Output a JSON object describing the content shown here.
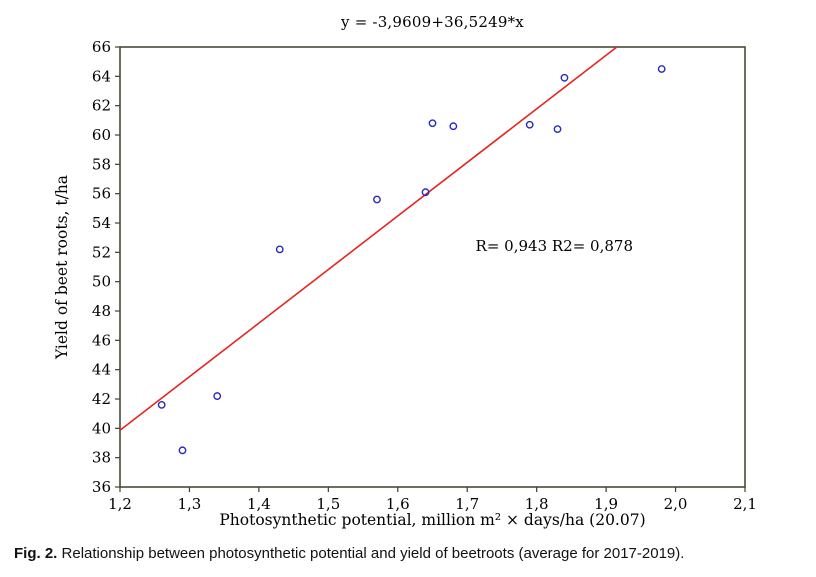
{
  "chart_data": {
    "type": "scatter",
    "title": "y = -3,9609+36,5249*x",
    "xlabel": "Photosynthetic potential, million m² × days/ha (20.07)",
    "ylabel": "Yield of beet roots, t/ha",
    "xlim": [
      1.2,
      2.1
    ],
    "ylim": [
      36,
      66
    ],
    "grid": false,
    "legend": null,
    "x_ticks": [
      {
        "value": 1.2,
        "label": "1,2"
      },
      {
        "value": 1.3,
        "label": "1,3"
      },
      {
        "value": 1.4,
        "label": "1,4"
      },
      {
        "value": 1.5,
        "label": "1,5"
      },
      {
        "value": 1.6,
        "label": "1,6"
      },
      {
        "value": 1.7,
        "label": "1,7"
      },
      {
        "value": 1.8,
        "label": "1,8"
      },
      {
        "value": 1.9,
        "label": "1,9"
      },
      {
        "value": 2.0,
        "label": "2,0"
      },
      {
        "value": 2.1,
        "label": "2,1"
      }
    ],
    "y_ticks": [
      {
        "value": 36,
        "label": "36"
      },
      {
        "value": 38,
        "label": "38"
      },
      {
        "value": 40,
        "label": "40"
      },
      {
        "value": 42,
        "label": "42"
      },
      {
        "value": 44,
        "label": "44"
      },
      {
        "value": 46,
        "label": "46"
      },
      {
        "value": 48,
        "label": "48"
      },
      {
        "value": 50,
        "label": "50"
      },
      {
        "value": 52,
        "label": "52"
      },
      {
        "value": 54,
        "label": "54"
      },
      {
        "value": 56,
        "label": "56"
      },
      {
        "value": 58,
        "label": "58"
      },
      {
        "value": 60,
        "label": "60"
      },
      {
        "value": 62,
        "label": "62"
      },
      {
        "value": 64,
        "label": "64"
      },
      {
        "value": 66,
        "label": "66"
      }
    ],
    "points": [
      [
        1.26,
        41.6
      ],
      [
        1.29,
        38.5
      ],
      [
        1.34,
        42.2
      ],
      [
        1.43,
        52.2
      ],
      [
        1.57,
        55.6
      ],
      [
        1.64,
        56.1
      ],
      [
        1.65,
        60.8
      ],
      [
        1.68,
        60.6
      ],
      [
        1.79,
        60.7
      ],
      [
        1.83,
        60.4
      ],
      [
        1.84,
        63.9
      ],
      [
        1.98,
        64.5
      ]
    ],
    "regression": {
      "intercept": -3.9609,
      "slope": 36.5249,
      "color": "#e62420"
    },
    "annotation": {
      "text": "R= 0,943 R2= 0,878",
      "x": 1.712,
      "y": 52.4
    },
    "point_color": "#2828c4",
    "frame_color": "#3f3f2a"
  },
  "caption": {
    "label": "Fig. 2.",
    "text": "Relationship between photosynthetic potential and yield of beetroots (average for 2017-2019)."
  }
}
